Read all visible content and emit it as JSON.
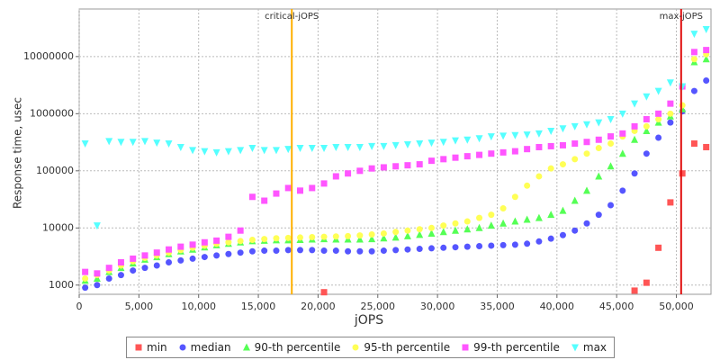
{
  "chart_data": {
    "type": "scatter",
    "xlabel": "jOPS",
    "ylabel": "Response time, usec",
    "x": [
      500,
      1500,
      2500,
      3500,
      4500,
      5500,
      6500,
      7500,
      8500,
      9500,
      10500,
      11500,
      12500,
      13500,
      14500,
      15500,
      16500,
      17500,
      18500,
      19500,
      20500,
      21500,
      22500,
      23500,
      24500,
      25500,
      26500,
      27500,
      28500,
      29500,
      30500,
      31500,
      32500,
      33500,
      34500,
      35500,
      36500,
      37500,
      38500,
      39500,
      40500,
      41500,
      42500,
      43500,
      44500,
      45500,
      46500,
      47500,
      48500,
      49500,
      50500,
      51500,
      52500
    ],
    "xlim": [
      0,
      52900
    ],
    "xticks": [
      0,
      {
        "value": 5000,
        "label": "5,000"
      },
      {
        "value": 10000,
        "label": "10,000"
      },
      {
        "value": 15000,
        "label": "15,000"
      },
      {
        "value": 20000,
        "label": "20,000"
      },
      {
        "value": 25000,
        "label": "25,000"
      },
      {
        "value": 30000,
        "label": "30,000"
      },
      {
        "value": 35000,
        "label": "35,000"
      },
      {
        "value": 40000,
        "label": "40,000"
      },
      {
        "value": 45000,
        "label": "45,000"
      },
      {
        "value": 50000,
        "label": "50,000"
      }
    ],
    "ylim": [
      690,
      68000000
    ],
    "log_y": true,
    "yticks": [
      1000,
      10000,
      100000,
      1000000,
      10000000
    ],
    "grid": true,
    "series": [
      {
        "name": "min",
        "color": "#ff5555",
        "marker": "square",
        "values": [
          null,
          null,
          null,
          null,
          null,
          null,
          null,
          null,
          null,
          null,
          null,
          null,
          null,
          null,
          null,
          null,
          null,
          null,
          null,
          null,
          750,
          null,
          null,
          null,
          null,
          null,
          null,
          null,
          null,
          null,
          null,
          null,
          null,
          null,
          null,
          null,
          null,
          null,
          null,
          null,
          null,
          null,
          null,
          null,
          null,
          null,
          800,
          1100,
          4500,
          28000,
          90000,
          300000,
          260000
        ]
      },
      {
        "name": "median",
        "color": "#5555ff",
        "marker": "circle",
        "values": [
          900,
          1000,
          1300,
          1500,
          1800,
          2000,
          2200,
          2500,
          2700,
          2900,
          3100,
          3300,
          3500,
          3700,
          3900,
          4000,
          4000,
          4100,
          4100,
          4100,
          4000,
          4000,
          3900,
          3900,
          3900,
          4000,
          4100,
          4200,
          4300,
          4400,
          4500,
          4600,
          4700,
          4800,
          4900,
          5000,
          5100,
          5300,
          5800,
          6500,
          7500,
          9000,
          12000,
          17000,
          25000,
          45000,
          90000,
          200000,
          380000,
          700000,
          1100000,
          2500000,
          3800000
        ]
      },
      {
        "name": "90-th percentile",
        "color": "#55ff55",
        "marker": "triangle-up",
        "values": [
          1200,
          1300,
          1700,
          2000,
          2400,
          2800,
          3100,
          3500,
          3900,
          4200,
          4600,
          5000,
          5300,
          5600,
          5900,
          6000,
          6100,
          6100,
          6200,
          6300,
          6400,
          6300,
          6300,
          6300,
          6400,
          6600,
          6800,
          7200,
          7600,
          8000,
          8500,
          9000,
          9500,
          10000,
          11000,
          12000,
          13000,
          14000,
          15000,
          17000,
          20000,
          30000,
          45000,
          80000,
          120000,
          200000,
          350000,
          500000,
          700000,
          900000,
          1200000,
          8000000,
          9000000
        ]
      },
      {
        "name": "95-th percentile",
        "color": "#ffff55",
        "marker": "circle",
        "values": [
          1300,
          1500,
          1800,
          2200,
          2600,
          3000,
          3300,
          3700,
          4100,
          4500,
          4900,
          5300,
          5600,
          5900,
          6200,
          6400,
          6600,
          6700,
          6800,
          6900,
          7000,
          7100,
          7200,
          7400,
          7700,
          8000,
          8500,
          9000,
          9500,
          10000,
          11000,
          12000,
          13000,
          15000,
          17000,
          22000,
          35000,
          55000,
          80000,
          110000,
          130000,
          160000,
          200000,
          250000,
          300000,
          400000,
          500000,
          600000,
          800000,
          1000000,
          1400000,
          9000000,
          11000000
        ]
      },
      {
        "name": "99-th percentile",
        "color": "#ff55ff",
        "marker": "square",
        "values": [
          1700,
          1600,
          2000,
          2500,
          2900,
          3300,
          3700,
          4200,
          4700,
          5100,
          5600,
          6000,
          7000,
          9000,
          35000,
          30000,
          40000,
          50000,
          45000,
          50000,
          60000,
          80000,
          90000,
          100000,
          110000,
          115000,
          120000,
          125000,
          130000,
          150000,
          160000,
          170000,
          180000,
          190000,
          200000,
          210000,
          220000,
          240000,
          260000,
          270000,
          280000,
          300000,
          320000,
          350000,
          400000,
          450000,
          600000,
          800000,
          1000000,
          1500000,
          3000000,
          12000000,
          13000000
        ]
      },
      {
        "name": "max",
        "color": "#55ffff",
        "marker": "triangle-down",
        "values": [
          300000,
          11000,
          330000,
          320000,
          320000,
          330000,
          310000,
          300000,
          260000,
          230000,
          220000,
          210000,
          220000,
          230000,
          250000,
          230000,
          230000,
          240000,
          250000,
          250000,
          250000,
          260000,
          260000,
          260000,
          270000,
          270000,
          280000,
          290000,
          300000,
          310000,
          320000,
          340000,
          350000,
          370000,
          400000,
          410000,
          420000,
          430000,
          450000,
          500000,
          550000,
          600000,
          650000,
          700000,
          800000,
          1000000,
          1500000,
          2000000,
          2500000,
          3500000,
          3000000,
          25000000,
          30000000
        ]
      }
    ],
    "annotations": [
      {
        "text": "critical-jOPS",
        "x": 17800,
        "color": "#ffb000"
      },
      {
        "text": "max-jOPS",
        "x": 50400,
        "color": "#e01010"
      }
    ]
  }
}
